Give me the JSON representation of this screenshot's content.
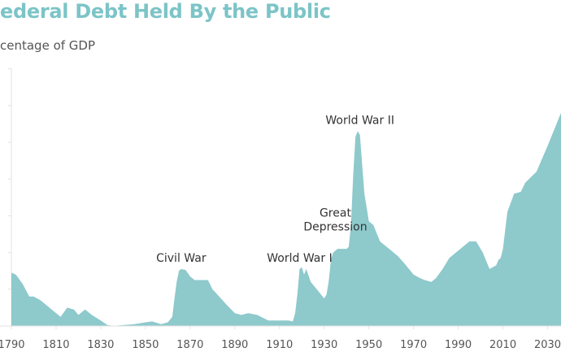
{
  "chart_data": {
    "type": "area",
    "title": "ederal Debt Held By the Public",
    "subtitle": "centage of GDP",
    "x_tick_labels": [
      "1790",
      "1810",
      "1830",
      "1850",
      "1870",
      "1890",
      "1910",
      "1930",
      "1950",
      "1970",
      "1990",
      "2010",
      "2030"
    ],
    "xlim": [
      1790,
      2036
    ],
    "ylim": [
      0,
      150
    ],
    "grid": false,
    "colors": {
      "area": "#8ec9cc",
      "title": "#7cc4c7",
      "axis": "#e2e2e2"
    },
    "series": [
      {
        "x": [
          1790,
          1792,
          1795,
          1798,
          1800,
          1803,
          1806,
          1809,
          1812,
          1815,
          1818,
          1820,
          1823,
          1826,
          1830,
          1833,
          1836,
          1840,
          1845,
          1850,
          1853,
          1857,
          1860,
          1862,
          1863,
          1864,
          1865,
          1866,
          1868,
          1870,
          1872,
          1875,
          1878,
          1880,
          1883,
          1886,
          1890,
          1893,
          1896,
          1900,
          1905,
          1910,
          1914,
          1916,
          1917,
          1918,
          1919,
          1920,
          1921,
          1922,
          1924,
          1926,
          1928,
          1930,
          1931,
          1932,
          1933,
          1934,
          1936,
          1938,
          1940,
          1941,
          1942,
          1943,
          1944,
          1945,
          1946,
          1947,
          1948,
          1950,
          1952,
          1955,
          1958,
          1960,
          1963,
          1966,
          1970,
          1973,
          1975,
          1978,
          1980,
          1983,
          1986,
          1989,
          1992,
          1995,
          1998,
          2001,
          2004,
          2007,
          2008,
          2009,
          2010,
          2012,
          2015,
          2018,
          2020,
          2025,
          2030,
          2036
        ],
        "values": [
          29,
          28,
          23,
          16,
          16,
          14,
          11,
          8,
          5,
          10,
          9,
          6,
          9,
          6,
          3,
          0.5,
          0.1,
          0.5,
          1,
          2,
          2.5,
          1,
          2,
          5,
          15,
          24,
          30,
          31,
          30.5,
          27,
          25,
          25,
          25,
          20,
          16,
          12,
          7,
          6,
          7,
          6,
          3,
          3,
          3,
          2.5,
          7,
          17,
          31,
          32,
          28,
          31,
          24,
          21,
          18,
          15,
          17,
          24,
          36,
          40,
          42,
          42,
          42,
          43,
          55,
          82,
          103,
          106,
          104,
          88,
          72,
          57,
          55,
          46,
          43,
          41,
          38,
          34,
          28,
          26,
          25,
          24,
          26,
          31,
          37,
          40,
          43,
          46,
          46,
          40,
          31,
          33,
          36,
          37,
          42,
          62,
          72,
          73,
          78,
          84,
          98,
          116
        ]
      }
    ],
    "annotations": [
      {
        "lines": [
          "Civil War"
        ],
        "x": 1866,
        "y": 35
      },
      {
        "lines": [
          "World War I"
        ],
        "x": 1919,
        "y": 35
      },
      {
        "lines": [
          "Great",
          "Depression"
        ],
        "x": 1935,
        "y": 52
      },
      {
        "lines": [
          "World War II"
        ],
        "x": 1946,
        "y": 110
      }
    ]
  }
}
